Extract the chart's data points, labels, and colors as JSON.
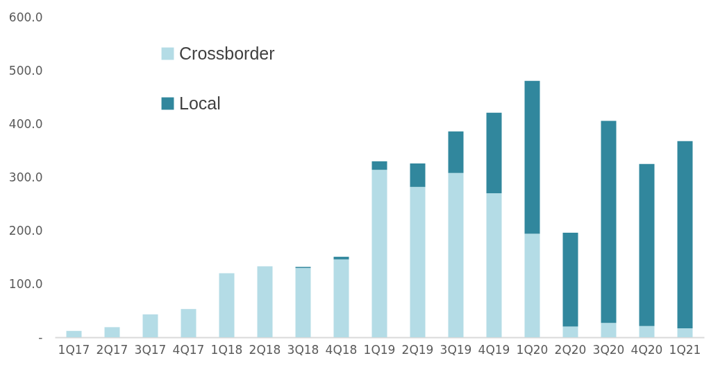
{
  "chart_data": {
    "type": "bar",
    "stacked": true,
    "legend": "top left",
    "categories": [
      "1Q17",
      "2Q17",
      "3Q17",
      "4Q17",
      "1Q18",
      "2Q18",
      "3Q18",
      "4Q18",
      "1Q19",
      "2Q19",
      "3Q19",
      "4Q19",
      "1Q20",
      "2Q20",
      "3Q20",
      "4Q20",
      "1Q21"
    ],
    "series": [
      {
        "name": "Crossborder",
        "color": "#b4dce6",
        "values": [
          12,
          19,
          43,
          53,
          120,
          133,
          130,
          146,
          314,
          282,
          308,
          270,
          194,
          20,
          27,
          21,
          17
        ]
      },
      {
        "name": "Local",
        "color": "#31879d",
        "values": [
          0,
          0,
          0,
          0,
          0,
          0,
          2,
          5,
          16,
          44,
          78,
          151,
          287,
          176,
          379,
          304,
          351
        ]
      }
    ],
    "ylim": [
      0,
      600
    ],
    "yticks": [
      {
        "value": 0,
        "label": "-"
      },
      {
        "value": 100,
        "label": "100.0"
      },
      {
        "value": 200,
        "label": "200.0"
      },
      {
        "value": 300,
        "label": "300.0"
      },
      {
        "value": 400,
        "label": "400.0"
      },
      {
        "value": 500,
        "label": "500.0"
      },
      {
        "value": 600,
        "label": "600.0"
      }
    ]
  }
}
